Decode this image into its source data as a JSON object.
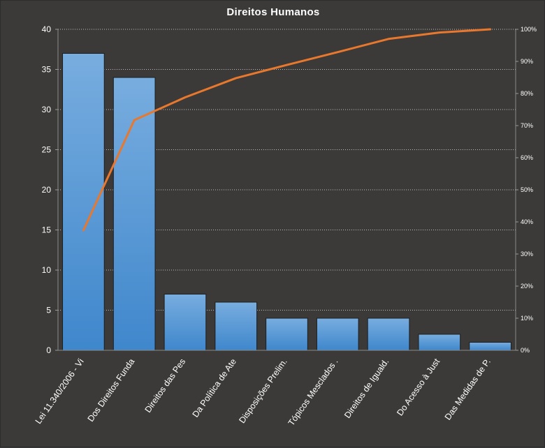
{
  "chart_data": {
    "type": "bar",
    "title": "Direitos  Humanos",
    "categories": [
      "Lei 11.340/2006 - Vi",
      "Dos Direitos Funda",
      "Direitos das Pes",
      "Da Política de Ate",
      "Disposições Prelim.",
      "Tópicos Mesclados  .",
      "Direitos de Iguald.",
      "Do Acesso à Just",
      "Das Medidas de P."
    ],
    "series": [
      {
        "type": "bar",
        "values": [
          37,
          34,
          7,
          6,
          4,
          4,
          4,
          2,
          1
        ]
      },
      {
        "type": "line",
        "axis": "right",
        "values": [
          37.4,
          71.7,
          78.8,
          84.8,
          88.9,
          92.9,
          97.0,
          99.0,
          100.0
        ]
      }
    ],
    "ylim": [
      0,
      40
    ],
    "yticks": [
      "0",
      "5",
      "10",
      "15",
      "20",
      "25",
      "30",
      "35",
      "40"
    ],
    "y2lim": [
      0,
      100
    ],
    "y2ticks": [
      "0%",
      "10%",
      "20%",
      "30%",
      "40%",
      "50%",
      "60%",
      "70%",
      "80%",
      "90%",
      "100%"
    ],
    "grid": true,
    "colors": {
      "bar_top": "#78addf",
      "bar_bottom": "#3f87cc",
      "line": "#e8782e",
      "grid": "#bdbdbd",
      "background": "#3b3a38"
    }
  }
}
